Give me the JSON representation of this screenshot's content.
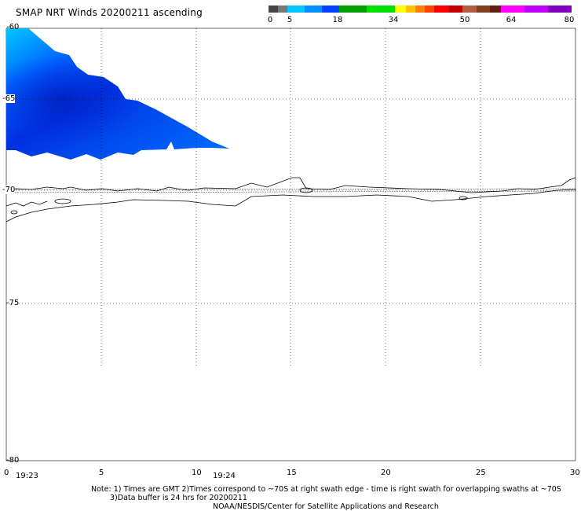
{
  "title": "SMAP NRT Winds 20200211 ascending",
  "colorbar": {
    "labels": [
      "0",
      "5",
      "18",
      "34",
      "50",
      "64",
      "80"
    ],
    "segments": [
      "#444444",
      "#777777",
      "#00c8ff",
      "#0090ff",
      "#0040ff",
      "#00a000",
      "#00e000",
      "#ffff00",
      "#ffc000",
      "#ff8000",
      "#ff4000",
      "#ff0000",
      "#c00000",
      "#b06040",
      "#804020",
      "#602010",
      "#ff00ff",
      "#c000ff",
      "#8000c0"
    ]
  },
  "axis": {
    "lat_labels": [
      "-60",
      "-65",
      "-70",
      "-75",
      "-80"
    ],
    "lon_labels": [
      "0",
      "5",
      "10",
      "15",
      "20",
      "25",
      "30"
    ],
    "time_labels": [
      "19:23",
      "19:24"
    ]
  },
  "notes": {
    "line1": "Note: 1) Times are GMT 2)Times correspond to ~70S at right swath edge - time is right swath for overlapping swaths at ~70S",
    "line2": "3)Data buffer is 24 hrs for 20200211",
    "line3": "NOAA/NESDIS/Center for Satellite Applications and Research"
  }
}
